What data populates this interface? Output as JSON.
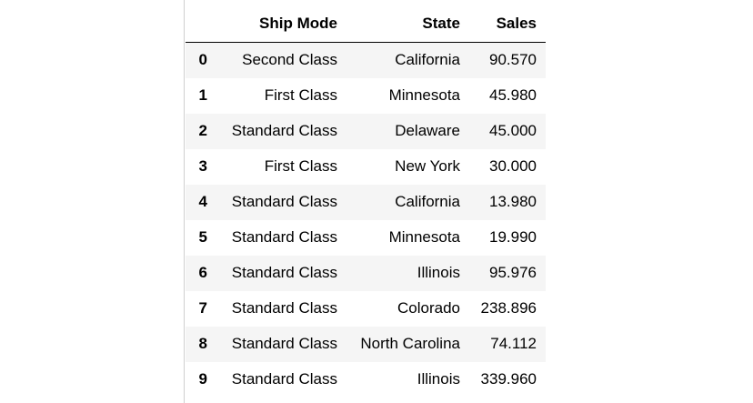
{
  "table": {
    "headers": {
      "index": "",
      "ship_mode": "Ship Mode",
      "state": "State",
      "sales": "Sales"
    },
    "rows": [
      {
        "index": "0",
        "ship_mode": "Second Class",
        "state": "California",
        "sales": "90.570"
      },
      {
        "index": "1",
        "ship_mode": "First Class",
        "state": "Minnesota",
        "sales": "45.980"
      },
      {
        "index": "2",
        "ship_mode": "Standard Class",
        "state": "Delaware",
        "sales": "45.000"
      },
      {
        "index": "3",
        "ship_mode": "First Class",
        "state": "New York",
        "sales": "30.000"
      },
      {
        "index": "4",
        "ship_mode": "Standard Class",
        "state": "California",
        "sales": "13.980"
      },
      {
        "index": "5",
        "ship_mode": "Standard Class",
        "state": "Minnesota",
        "sales": "19.990"
      },
      {
        "index": "6",
        "ship_mode": "Standard Class",
        "state": "Illinois",
        "sales": "95.976"
      },
      {
        "index": "7",
        "ship_mode": "Standard Class",
        "state": "Colorado",
        "sales": "238.896"
      },
      {
        "index": "8",
        "ship_mode": "Standard Class",
        "state": "North Carolina",
        "sales": "74.112"
      },
      {
        "index": "9",
        "ship_mode": "Standard Class",
        "state": "Illinois",
        "sales": "339.960"
      }
    ]
  },
  "colors": {
    "row_stripe": "#f5f5f5",
    "border": "#000000",
    "prompt_border": "#cfcfcf"
  }
}
